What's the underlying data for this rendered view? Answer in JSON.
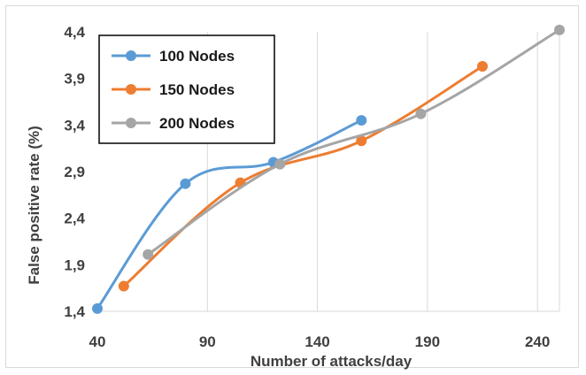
{
  "chart_data": {
    "type": "line",
    "title": "",
    "xlabel": "Number of attacks/day",
    "ylabel": "False positive rate (%)",
    "xlim": [
      40,
      250
    ],
    "ylim": [
      1.4,
      4.4
    ],
    "x_ticks": [
      "40",
      "90",
      "140",
      "190",
      "240"
    ],
    "y_ticks": [
      "1,4",
      "1,9",
      "2,4",
      "2,9",
      "3,4",
      "3,9",
      "4,4"
    ],
    "grid": "vertical",
    "legend_position": "top-left",
    "series": [
      {
        "name": "100 Nodes",
        "color": "#5b9bd5",
        "x": [
          40,
          80,
          120,
          160
        ],
        "y": [
          1.43,
          2.77,
          3.0,
          3.45
        ]
      },
      {
        "name": "150 Nodes",
        "color": "#ed7d31",
        "x": [
          52,
          105,
          160,
          215
        ],
        "y": [
          1.67,
          2.78,
          3.23,
          4.03
        ]
      },
      {
        "name": "200 Nodes",
        "color": "#a5a5a5",
        "x": [
          63,
          123,
          187,
          250
        ],
        "y": [
          2.01,
          2.98,
          3.52,
          4.42
        ]
      }
    ]
  }
}
